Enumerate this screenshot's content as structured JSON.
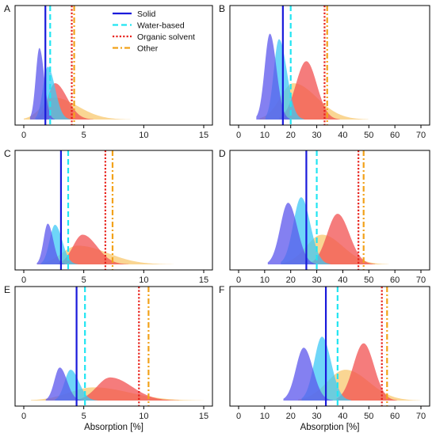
{
  "chart_data": [
    {
      "type": "area",
      "panel": "A",
      "xlim": [
        0,
        15
      ],
      "xticks": [
        0,
        5,
        10,
        15
      ],
      "xlabel": "",
      "series": [
        {
          "name": "Solid",
          "mode": 1.3,
          "peak": 0.65,
          "sl": 0.3,
          "sr": 0.4,
          "median": 1.8
        },
        {
          "name": "Water-based",
          "mode": 2.0,
          "peak": 0.48,
          "sl": 0.4,
          "sr": 0.6,
          "median": 2.2
        },
        {
          "name": "Organic solvent",
          "mode": 2.6,
          "peak": 0.33,
          "sl": 0.6,
          "sr": 1.0,
          "median": 4.0
        },
        {
          "name": "Other",
          "mode": 2.5,
          "peak": 0.2,
          "sl": 1.0,
          "sr": 2.0,
          "median": 4.2
        }
      ]
    },
    {
      "type": "area",
      "panel": "B",
      "xlim": [
        0,
        70
      ],
      "xticks": [
        0,
        10,
        20,
        30,
        40,
        50,
        60,
        70
      ],
      "xlabel": "",
      "series": [
        {
          "name": "Solid",
          "mode": 12,
          "peak": 0.78,
          "sl": 2.0,
          "sr": 2.5,
          "median": 17
        },
        {
          "name": "Water-based",
          "mode": 15.5,
          "peak": 0.73,
          "sl": 2.0,
          "sr": 3.0,
          "median": 20
        },
        {
          "name": "Organic solvent",
          "mode": 26,
          "peak": 0.53,
          "sl": 4.0,
          "sr": 4.0,
          "median": 33
        },
        {
          "name": "Other",
          "mode": 21,
          "peak": 0.33,
          "sl": 5.0,
          "sr": 9.0,
          "median": 34
        }
      ]
    },
    {
      "type": "area",
      "panel": "C",
      "xlim": [
        0,
        15
      ],
      "xticks": [
        0,
        5,
        10,
        15
      ],
      "xlabel": "",
      "series": [
        {
          "name": "Solid",
          "mode": 2.0,
          "peak": 0.37,
          "sl": 0.35,
          "sr": 0.45,
          "median": 3.1
        },
        {
          "name": "Water-based",
          "mode": 2.6,
          "peak": 0.36,
          "sl": 0.45,
          "sr": 0.6,
          "median": 3.7
        },
        {
          "name": "Organic solvent",
          "mode": 4.9,
          "peak": 0.27,
          "sl": 0.8,
          "sr": 1.2,
          "median": 6.8
        },
        {
          "name": "Other",
          "mode": 4.5,
          "peak": 0.17,
          "sl": 1.3,
          "sr": 2.5,
          "median": 7.4
        }
      ]
    },
    {
      "type": "area",
      "panel": "D",
      "xlim": [
        0,
        70
      ],
      "xticks": [
        0,
        10,
        20,
        30,
        40,
        50,
        60,
        70
      ],
      "xlabel": "",
      "series": [
        {
          "name": "Solid",
          "mode": 19,
          "peak": 0.56,
          "sl": 3.0,
          "sr": 3.5,
          "median": 26
        },
        {
          "name": "Water-based",
          "mode": 24,
          "peak": 0.61,
          "sl": 3.0,
          "sr": 3.5,
          "median": 30
        },
        {
          "name": "Organic solvent",
          "mode": 38,
          "peak": 0.46,
          "sl": 4.0,
          "sr": 4.5,
          "median": 46
        },
        {
          "name": "Other",
          "mode": 32,
          "peak": 0.27,
          "sl": 6.0,
          "sr": 8.0,
          "median": 48
        }
      ]
    },
    {
      "type": "area",
      "panel": "E",
      "xlim": [
        0,
        15
      ],
      "xticks": [
        0,
        5,
        10,
        15
      ],
      "xlabel": "Absorption [%]",
      "series": [
        {
          "name": "Solid",
          "mode": 3.0,
          "peak": 0.3,
          "sl": 0.45,
          "sr": 0.6,
          "median": 4.4
        },
        {
          "name": "Water-based",
          "mode": 3.9,
          "peak": 0.28,
          "sl": 0.5,
          "sr": 0.7,
          "median": 5.1
        },
        {
          "name": "Organic solvent",
          "mode": 7.2,
          "peak": 0.21,
          "sl": 1.1,
          "sr": 1.8,
          "median": 9.6
        },
        {
          "name": "Other",
          "mode": 5.8,
          "peak": 0.12,
          "sl": 2.0,
          "sr": 3.0,
          "median": 10.4
        }
      ]
    },
    {
      "type": "area",
      "panel": "F",
      "xlim": [
        0,
        70
      ],
      "xticks": [
        0,
        10,
        20,
        30,
        40,
        50,
        60,
        70
      ],
      "xlabel": "Absorption [%]",
      "series": [
        {
          "name": "Solid",
          "mode": 25,
          "peak": 0.48,
          "sl": 3.0,
          "sr": 3.5,
          "median": 33.5
        },
        {
          "name": "Water-based",
          "mode": 32,
          "peak": 0.58,
          "sl": 3.0,
          "sr": 3.5,
          "median": 38
        },
        {
          "name": "Organic solvent",
          "mode": 48,
          "peak": 0.52,
          "sl": 4.0,
          "sr": 4.0,
          "median": 55
        },
        {
          "name": "Other",
          "mode": 41,
          "peak": 0.28,
          "sl": 7.0,
          "sr": 9.0,
          "median": 57
        }
      ]
    }
  ],
  "legend": {
    "placement": "top-right of panel A",
    "entries": [
      {
        "label": "Solid",
        "color": "#1a1adb",
        "dash": "solid"
      },
      {
        "label": "Water-based",
        "color": "#22e5f2",
        "dash": "dashed"
      },
      {
        "label": "Organic solvent",
        "color": "#e8201a",
        "dash": "dotted"
      },
      {
        "label": "Other",
        "color": "#f2a21a",
        "dash": "dashdot"
      }
    ]
  },
  "colors": {
    "Solid": {
      "fill": "#5b55ec",
      "line": "#1a1adb"
    },
    "Water-based": {
      "fill": "#3dc8f5",
      "line": "#22e5f2"
    },
    "Organic solvent": {
      "fill": "#f25050",
      "line": "#e8201a"
    },
    "Other": {
      "fill": "#f5b43a",
      "line": "#f2a21a"
    }
  }
}
